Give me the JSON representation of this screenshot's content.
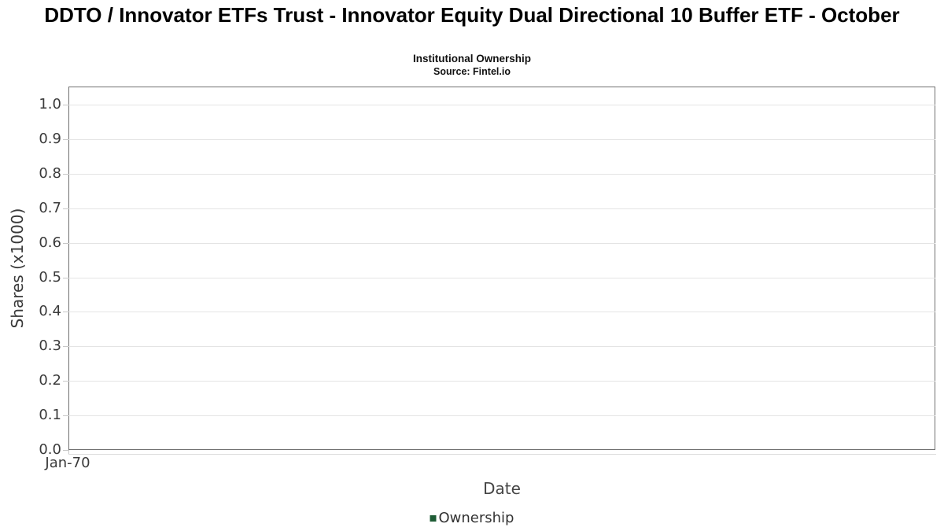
{
  "chart_data": {
    "type": "line",
    "title": "DDTO / Innovator ETFs Trust - Innovator Equity Dual Directional 10 Buffer ETF - October",
    "subtitle": "Institutional Ownership",
    "source": "Source: Fintel.io",
    "xlabel": "Date",
    "ylabel": "Shares (x1000)",
    "x_ticks": [
      "Jan-70"
    ],
    "y_ticks": [
      0.0,
      0.1,
      0.2,
      0.3,
      0.4,
      0.5,
      0.6,
      0.7,
      0.8,
      0.9,
      1.0
    ],
    "ylim": [
      0,
      1.05
    ],
    "grid": true,
    "legend_position": "bottom-center",
    "series": [
      {
        "name": "Ownership",
        "color": "#1e5c35",
        "x": [],
        "values": []
      }
    ]
  },
  "colors": {
    "axis_border": "#707070",
    "gridline": "#e4e4e4",
    "tick_mark": "#c8c8c8",
    "tick_text": "#3a3a3a",
    "legend_green": "#1e5c35"
  }
}
